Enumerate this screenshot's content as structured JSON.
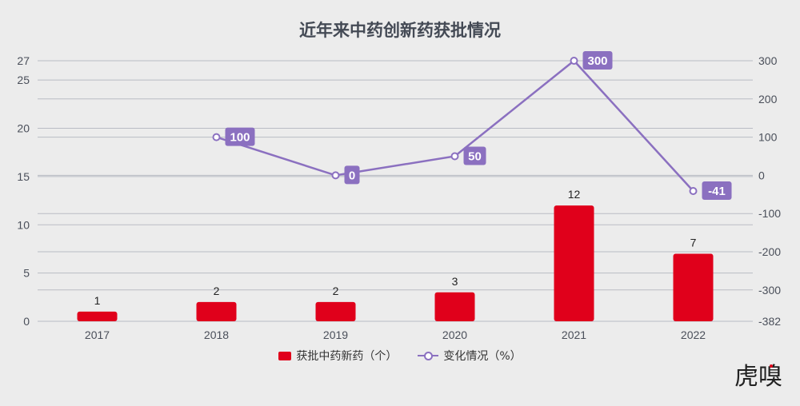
{
  "chart_data": {
    "type": "bar+line",
    "title": "近年来中药创新药获批情况",
    "categories": [
      "2017",
      "2018",
      "2019",
      "2020",
      "2021",
      "2022"
    ],
    "series": [
      {
        "name": "获批中药新药（个）",
        "type": "bar",
        "axis": "left",
        "values": [
          1,
          2,
          2,
          3,
          12,
          7
        ],
        "color": "#e0001b"
      },
      {
        "name": "变化情况（%）",
        "type": "line",
        "axis": "right",
        "values": [
          null,
          100,
          0,
          50,
          300,
          -41
        ],
        "color": "#8b70c0"
      }
    ],
    "left_axis": {
      "range": [
        0,
        27
      ],
      "ticks": [
        0,
        5,
        10,
        15,
        20,
        25,
        27
      ]
    },
    "right_axis": {
      "range": [
        -382,
        300
      ],
      "ticks": [
        -382,
        -300,
        -200,
        -100,
        0,
        100,
        200,
        300
      ]
    },
    "grid": true,
    "legend_position": "bottom"
  },
  "logo": "虎嗅",
  "colors": {
    "background": "#ececec",
    "bar": "#e0001b",
    "line": "#8b70c0",
    "grid": "#b9bcc4"
  }
}
